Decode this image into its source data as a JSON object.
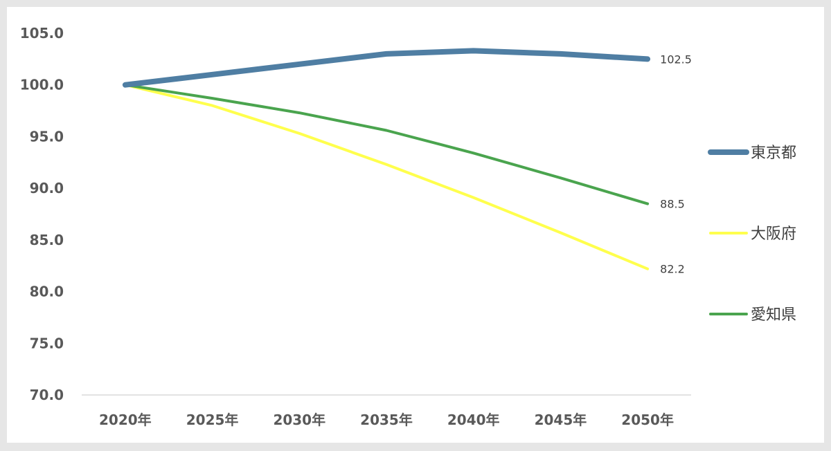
{
  "chart_data": {
    "type": "line",
    "title": "",
    "xlabel": "",
    "ylabel": "",
    "categories": [
      "2020年",
      "2025年",
      "2030年",
      "2035年",
      "2040年",
      "2045年",
      "2050年"
    ],
    "ylim": [
      70,
      105
    ],
    "yticks": [
      "70.0",
      "75.0",
      "80.0",
      "85.0",
      "90.0",
      "95.0",
      "100.0",
      "105.0"
    ],
    "grid": false,
    "legend_position": "right",
    "series": [
      {
        "name": "東京都",
        "color": "#4f7ea3",
        "values": [
          100.0,
          101.0,
          102.0,
          103.0,
          103.3,
          103.0,
          102.5
        ],
        "end_label": "102.5"
      },
      {
        "name": "大阪府",
        "color": "#ffff4d",
        "values": [
          100.0,
          98.0,
          95.3,
          92.3,
          89.1,
          85.7,
          82.2
        ],
        "end_label": "82.2"
      },
      {
        "name": "愛知県",
        "color": "#4aa44e",
        "values": [
          100.0,
          98.7,
          97.3,
          95.6,
          93.4,
          91.0,
          88.5
        ],
        "end_label": "88.5"
      }
    ]
  }
}
